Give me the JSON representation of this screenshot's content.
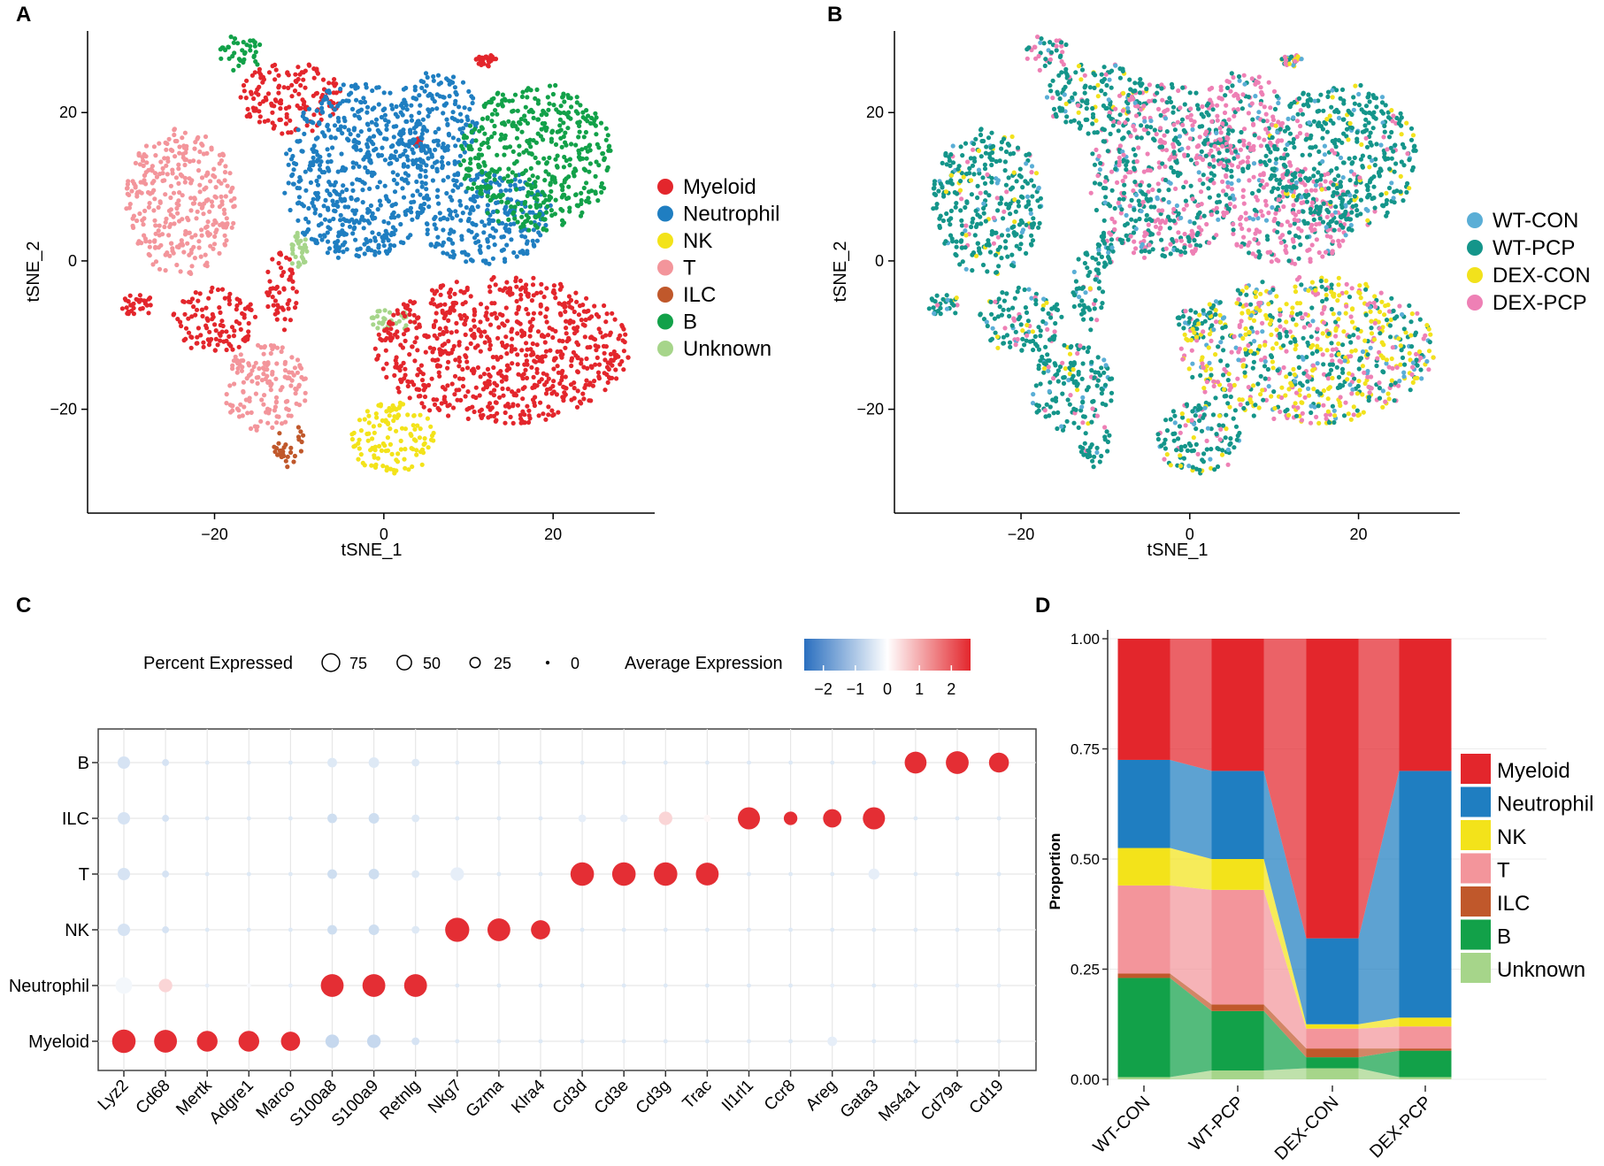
{
  "panels": {
    "A": {
      "label": "A"
    },
    "B": {
      "label": "B"
    },
    "C": {
      "label": "C"
    },
    "D": {
      "label": "D"
    }
  },
  "colors": {
    "Myeloid": "#e3262c",
    "Neutrophil": "#1f7ec1",
    "NK": "#f3e31a",
    "T": "#f3959b",
    "ILC": "#c0582b",
    "B": "#12a149",
    "Unknown": "#a6d58a",
    "WT-CON": "#5aaed6",
    "WT-PCP": "#14958a",
    "DEX-CON": "#f2e21c",
    "DEX-PCP": "#ee80b5"
  },
  "chart_data": [
    {
      "id": "A",
      "type": "scatter",
      "title": "",
      "xlabel": "tSNE_1",
      "ylabel": "tSNE_2",
      "xlim": [
        -35,
        32
      ],
      "ylim": [
        -34,
        31
      ],
      "xticks": [
        -20,
        0,
        20
      ],
      "xtick_labels": [
        "−20",
        "0",
        "20"
      ],
      "yticks": [
        -20,
        0,
        20
      ],
      "ytick_labels": [
        "−20",
        "0",
        "20"
      ],
      "legend": [
        "Myeloid",
        "Neutrophil",
        "NK",
        "T",
        "ILC",
        "B",
        "Unknown"
      ],
      "clusters": [
        {
          "label": "Unknown",
          "cx": -10,
          "cy": 1,
          "rx": 1,
          "ry": 3
        },
        {
          "label": "Unknown",
          "cx": 1,
          "cy": -8,
          "rx": 3,
          "ry": 1.5
        },
        {
          "label": "Myeloid",
          "cx": 4,
          "cy": 16,
          "rx": 0.5,
          "ry": 0.5
        },
        {
          "label": "Myeloid",
          "cx": 14,
          "cy": -12,
          "rx": 15,
          "ry": 10
        },
        {
          "label": "Myeloid",
          "cx": -20,
          "cy": -8,
          "rx": 5,
          "ry": 4.5
        },
        {
          "label": "Myeloid",
          "cx": -29,
          "cy": -6,
          "rx": 2,
          "ry": 1.5
        },
        {
          "label": "Myeloid",
          "cx": -12,
          "cy": -4,
          "rx": 2,
          "ry": 5.5
        },
        {
          "label": "Myeloid",
          "cx": -11,
          "cy": 22,
          "rx": 6,
          "ry": 5
        },
        {
          "label": "Myeloid",
          "cx": 12,
          "cy": 27,
          "rx": 1.5,
          "ry": 0.8
        },
        {
          "label": "Neutrophil",
          "cx": -3,
          "cy": 12,
          "rx": 9,
          "ry": 12
        },
        {
          "label": "Neutrophil",
          "cx": 6,
          "cy": 19,
          "rx": 5,
          "ry": 7
        },
        {
          "label": "Neutrophil",
          "cx": 12,
          "cy": 6,
          "rx": 8,
          "ry": 6.5
        },
        {
          "label": "B",
          "cx": 18,
          "cy": 14,
          "rx": 9,
          "ry": 10
        },
        {
          "label": "B",
          "cx": -17,
          "cy": 28,
          "rx": 3,
          "ry": 2.5
        },
        {
          "label": "T",
          "cx": -24,
          "cy": 8,
          "rx": 6.5,
          "ry": 10
        },
        {
          "label": "T",
          "cx": -14,
          "cy": -17,
          "rx": 5,
          "ry": 6
        },
        {
          "label": "NK",
          "cx": 1,
          "cy": -24,
          "rx": 5,
          "ry": 5
        },
        {
          "label": "ILC",
          "cx": -11,
          "cy": -25,
          "rx": 2,
          "ry": 3
        }
      ]
    },
    {
      "id": "B",
      "type": "scatter",
      "title": "",
      "xlabel": "tSNE_1",
      "ylabel": "tSNE_2",
      "xlim": [
        -35,
        32
      ],
      "ylim": [
        -34,
        31
      ],
      "xticks": [
        -20,
        0,
        20
      ],
      "xtick_labels": [
        "−20",
        "0",
        "20"
      ],
      "yticks": [
        -20,
        0,
        20
      ],
      "ytick_labels": [
        "−20",
        "0",
        "20"
      ],
      "legend": [
        "WT-CON",
        "WT-PCP",
        "DEX-CON",
        "DEX-PCP"
      ]
    },
    {
      "id": "C",
      "type": "dotplot",
      "genes": [
        "Lyz2",
        "Cd68",
        "Mertk",
        "Adgre1",
        "Marco",
        "S100a8",
        "S100a9",
        "Retnlg",
        "Nkg7",
        "Gzma",
        "Klra4",
        "Cd3d",
        "Cd3e",
        "Cd3g",
        "Trac",
        "Il1rl1",
        "Ccr8",
        "Areg",
        "Gata3",
        "Ms4a1",
        "Cd79a",
        "Cd19"
      ],
      "celltypes": [
        "B",
        "ILC",
        "T",
        "NK",
        "Neutrophil",
        "Myeloid"
      ],
      "size_legend_title": "Percent Expressed",
      "size_legend": [
        75,
        50,
        25,
        0
      ],
      "size_legend_labels": [
        "75",
        "50",
        "25",
        "0"
      ],
      "color_legend_title": "Average Expression",
      "color_range": [
        -2.6,
        2.6
      ],
      "color_ticks": [
        -2,
        -1,
        0,
        1,
        2
      ],
      "color_tick_labels": [
        "−2",
        "−1",
        "0",
        "1",
        "2"
      ],
      "pct": [
        [
          25,
          8,
          3,
          3,
          3,
          15,
          18,
          10,
          3,
          3,
          3,
          3,
          3,
          3,
          3,
          3,
          3,
          3,
          3,
          78,
          85,
          65
        ],
        [
          25,
          8,
          3,
          3,
          3,
          15,
          18,
          10,
          3,
          3,
          3,
          10,
          10,
          30,
          8,
          80,
          30,
          55,
          80,
          3,
          3,
          3
        ],
        [
          25,
          8,
          3,
          3,
          3,
          15,
          18,
          10,
          30,
          3,
          3,
          90,
          90,
          90,
          85,
          3,
          3,
          3,
          20,
          3,
          3,
          3
        ],
        [
          25,
          8,
          3,
          3,
          3,
          15,
          18,
          10,
          95,
          85,
          60,
          3,
          3,
          3,
          3,
          3,
          3,
          3,
          3,
          3,
          3,
          3
        ],
        [
          45,
          30,
          3,
          3,
          3,
          85,
          85,
          85,
          3,
          3,
          3,
          3,
          3,
          3,
          3,
          3,
          3,
          3,
          3,
          3,
          3,
          3
        ],
        [
          90,
          85,
          70,
          70,
          60,
          30,
          30,
          10,
          3,
          3,
          3,
          3,
          3,
          3,
          3,
          3,
          3,
          15,
          3,
          3,
          3,
          3
        ]
      ],
      "avg": [
        [
          -0.5,
          -0.5,
          -0.4,
          -0.4,
          -0.4,
          -0.4,
          -0.4,
          -0.4,
          -0.4,
          -0.4,
          -0.4,
          -0.4,
          -0.4,
          -0.4,
          -0.4,
          -0.4,
          -0.4,
          -0.4,
          -0.4,
          2.5,
          2.5,
          2.5
        ],
        [
          -0.5,
          -0.5,
          -0.4,
          -0.4,
          -0.4,
          -0.6,
          -0.6,
          -0.4,
          -0.4,
          -0.4,
          -0.4,
          -0.3,
          -0.3,
          0.5,
          0.1,
          2.5,
          2.5,
          2.5,
          2.5,
          -0.4,
          -0.4,
          -0.4
        ],
        [
          -0.5,
          -0.5,
          -0.4,
          -0.4,
          -0.4,
          -0.6,
          -0.6,
          -0.4,
          -0.3,
          -0.4,
          -0.4,
          2.5,
          2.5,
          2.5,
          2.5,
          -0.4,
          -0.4,
          -0.4,
          -0.3,
          -0.4,
          -0.4,
          -0.4
        ],
        [
          -0.5,
          -0.5,
          -0.4,
          -0.4,
          -0.4,
          -0.6,
          -0.6,
          -0.4,
          2.5,
          2.5,
          2.5,
          -0.4,
          -0.4,
          -0.4,
          -0.4,
          -0.4,
          -0.4,
          -0.4,
          -0.4,
          -0.4,
          -0.4,
          -0.4
        ],
        [
          -0.15,
          0.5,
          -0.3,
          -0.1,
          -0.3,
          2.5,
          2.5,
          2.5,
          -0.4,
          -0.4,
          -0.4,
          -0.4,
          -0.4,
          -0.4,
          -0.4,
          -0.4,
          -0.4,
          -0.3,
          -0.4,
          -0.3,
          -0.3,
          -0.3
        ],
        [
          2.5,
          2.5,
          2.5,
          2.5,
          2.5,
          -0.7,
          -0.7,
          -0.5,
          -0.4,
          -0.4,
          -0.4,
          -0.4,
          -0.4,
          -0.4,
          -0.4,
          -0.4,
          -0.4,
          -0.3,
          -0.4,
          -0.4,
          -0.4,
          -0.4
        ]
      ]
    },
    {
      "id": "D",
      "type": "stacked_bar",
      "categories": [
        "WT-CON",
        "WT-PCP",
        "DEX-CON",
        "DEX-PCP"
      ],
      "ylabel": "Proportion",
      "ylim": [
        0,
        1
      ],
      "yticks": [
        0,
        0.25,
        0.5,
        0.75,
        1
      ],
      "ytick_labels": [
        "0.00",
        "0.25",
        "0.50",
        "0.75",
        "1.00"
      ],
      "legend": [
        "Myeloid",
        "Neutrophil",
        "NK",
        "T",
        "ILC",
        "B",
        "Unknown"
      ],
      "series": [
        {
          "name": "Unknown",
          "values": [
            0.005,
            0.02,
            0.025,
            0.005
          ]
        },
        {
          "name": "B",
          "values": [
            0.225,
            0.135,
            0.025,
            0.06
          ]
        },
        {
          "name": "ILC",
          "values": [
            0.01,
            0.015,
            0.02,
            0.005
          ]
        },
        {
          "name": "T",
          "values": [
            0.2,
            0.26,
            0.045,
            0.05
          ]
        },
        {
          "name": "NK",
          "values": [
            0.085,
            0.07,
            0.01,
            0.02
          ]
        },
        {
          "name": "Neutrophil",
          "values": [
            0.2,
            0.2,
            0.195,
            0.56
          ]
        },
        {
          "name": "Myeloid",
          "values": [
            0.275,
            0.3,
            0.68,
            0.3
          ]
        }
      ]
    }
  ]
}
